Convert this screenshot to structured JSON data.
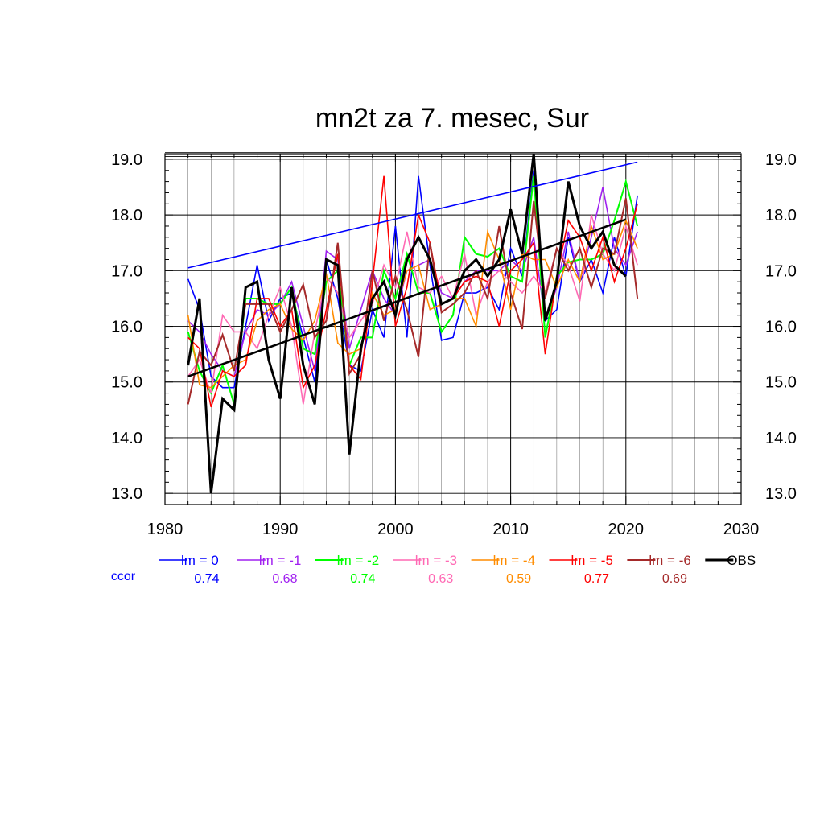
{
  "chart_data": {
    "type": "line",
    "title": "mn2t za 7. mesec, Sur",
    "xlim": [
      1980,
      2030
    ],
    "ylim": [
      12.8,
      19.1
    ],
    "x_ticks": [
      1980,
      1990,
      2000,
      2010,
      2020,
      2030
    ],
    "x_tick_labels": [
      "1980",
      "1990",
      "2000",
      "2010",
      "2020",
      "2030"
    ],
    "y_ticks": [
      13,
      14,
      15,
      16,
      17,
      18,
      19
    ],
    "y_tick_labels": [
      "13.0",
      "14.0",
      "15.0",
      "16.0",
      "17.0",
      "18.0",
      "19.0"
    ],
    "grid": true,
    "legend_position": "bottom",
    "ccor_label": "ccor",
    "series": [
      {
        "name": "lm = 0",
        "color": "#0000ff",
        "width": 1.6,
        "ccor": "0.74",
        "start": 1982,
        "values": [
          16.85,
          16.3,
          15.1,
          14.9,
          14.9,
          16.0,
          17.1,
          16.1,
          16.5,
          16.6,
          15.8,
          15.0,
          17.2,
          16.5,
          15.3,
          15.2,
          16.3,
          15.8,
          17.8,
          15.8,
          18.7,
          17.1,
          15.75,
          15.8,
          16.6,
          16.6,
          16.7,
          16.3,
          17.4,
          16.9,
          18.8,
          16.1,
          16.3,
          17.6,
          16.8,
          17.2,
          16.6,
          17.6,
          16.9,
          18.35
        ]
      },
      {
        "name": "lm = -1",
        "color": "#a020f0",
        "width": 1.6,
        "ccor": "0.68",
        "start": 1982,
        "values": [
          16.1,
          15.9,
          15.5,
          15.2,
          15.1,
          15.9,
          16.3,
          16.2,
          16.4,
          16.8,
          16.0,
          15.2,
          17.35,
          17.2,
          15.6,
          16.3,
          17.0,
          16.5,
          16.2,
          17.0,
          17.1,
          17.2,
          16.6,
          16.5,
          16.8,
          17.0,
          17.0,
          17.0,
          17.2,
          17.0,
          17.6,
          16.1,
          16.7,
          17.7,
          16.8,
          17.6,
          18.5,
          17.4,
          17.1,
          17.7
        ]
      },
      {
        "name": "lm = -2",
        "color": "#00ff00",
        "width": 2.0,
        "ccor": "0.74",
        "start": 1982,
        "values": [
          15.9,
          15.2,
          14.8,
          15.3,
          14.6,
          16.5,
          16.5,
          16.4,
          16.4,
          16.7,
          15.6,
          15.5,
          16.8,
          17.0,
          15.3,
          15.8,
          15.8,
          17.0,
          16.5,
          17.3,
          16.6,
          16.6,
          15.9,
          16.2,
          17.6,
          17.3,
          17.25,
          17.4,
          16.9,
          16.8,
          18.7,
          15.8,
          16.9,
          17.15,
          17.2,
          17.2,
          17.3,
          17.9,
          18.6,
          17.8
        ]
      },
      {
        "name": "lm = -3",
        "color": "#ff69b4",
        "width": 1.6,
        "ccor": "0.63",
        "start": 1982,
        "values": [
          15.1,
          15.4,
          14.8,
          16.2,
          15.9,
          15.9,
          15.6,
          16.2,
          16.7,
          16.0,
          14.6,
          15.9,
          16.9,
          16.6,
          15.8,
          16.1,
          16.4,
          17.1,
          16.7,
          17.7,
          16.7,
          16.6,
          16.9,
          16.5,
          17.3,
          16.2,
          16.8,
          17.0,
          16.8,
          16.6,
          16.9,
          16.6,
          17.4,
          17.1,
          16.45,
          18.0,
          17.3,
          17.0,
          17.8,
          17.1
        ]
      },
      {
        "name": "lm = -4",
        "color": "#ff8c00",
        "width": 1.6,
        "ccor": "0.59",
        "start": 1982,
        "values": [
          16.2,
          14.95,
          14.9,
          15.1,
          15.3,
          15.4,
          16.1,
          16.3,
          16.4,
          15.95,
          15.75,
          16.1,
          16.95,
          15.7,
          15.5,
          15.6,
          16.6,
          16.2,
          16.3,
          17.0,
          17.1,
          16.3,
          16.4,
          16.5,
          16.5,
          16.0,
          17.7,
          17.2,
          16.3,
          17.3,
          17.2,
          17.2,
          16.7,
          17.2,
          16.8,
          17.8,
          17.2,
          17.3,
          17.9,
          17.4
        ]
      },
      {
        "name": "lm = -5",
        "color": "#ff0000",
        "width": 1.6,
        "ccor": "0.77",
        "start": 1982,
        "values": [
          15.8,
          15.6,
          14.55,
          15.2,
          15.1,
          15.3,
          16.5,
          16.5,
          16.0,
          16.3,
          14.9,
          15.3,
          16.3,
          17.3,
          15.3,
          15.05,
          16.8,
          18.7,
          16.0,
          16.7,
          18.0,
          17.5,
          16.4,
          16.5,
          16.8,
          16.9,
          16.8,
          16.0,
          17.0,
          17.2,
          17.5,
          15.5,
          16.9,
          17.9,
          17.6,
          17.0,
          17.6,
          16.8,
          17.4,
          18.2
        ]
      },
      {
        "name": "lm = -6",
        "color": "#a52a2a",
        "width": 2.0,
        "ccor": "0.69",
        "start": 1982,
        "values": [
          14.6,
          15.55,
          15.3,
          15.85,
          15.2,
          16.4,
          16.4,
          16.4,
          15.9,
          16.3,
          16.75,
          15.8,
          16.1,
          17.5,
          15.15,
          15.5,
          17.0,
          16.1,
          16.9,
          16.3,
          15.45,
          17.5,
          16.25,
          16.4,
          16.6,
          17.0,
          16.5,
          17.8,
          16.6,
          15.95,
          18.25,
          16.5,
          17.4,
          17.0,
          17.4,
          16.7,
          17.4,
          17.3,
          18.3,
          16.5
        ]
      },
      {
        "name": "OBS",
        "color": "#000000",
        "width": 3.0,
        "ccor": "",
        "start": 1982,
        "values": [
          15.3,
          16.5,
          13.0,
          14.7,
          14.5,
          16.7,
          16.8,
          15.4,
          14.7,
          16.7,
          15.3,
          14.6,
          17.2,
          17.1,
          13.7,
          15.6,
          16.5,
          16.8,
          16.2,
          17.2,
          17.6,
          17.2,
          16.4,
          16.5,
          17.0,
          17.2,
          16.9,
          17.2,
          18.1,
          17.3,
          19.1,
          16.1,
          16.8,
          18.6,
          17.8,
          17.4,
          17.7,
          17.1,
          16.9
        ]
      }
    ],
    "trend_lines": [
      {
        "color": "#0000ff",
        "width": 1.6,
        "x": [
          1982,
          2021
        ],
        "y": [
          17.05,
          18.95
        ]
      },
      {
        "color": "#000000",
        "width": 2.6,
        "x": [
          1982,
          2020
        ],
        "y": [
          15.1,
          17.92
        ]
      }
    ],
    "reference_lines": [
      {
        "color": "#000000",
        "width": 0.8,
        "y": 19.05
      },
      {
        "color": "#000000",
        "width": 0.8,
        "y": 19.12
      }
    ]
  }
}
